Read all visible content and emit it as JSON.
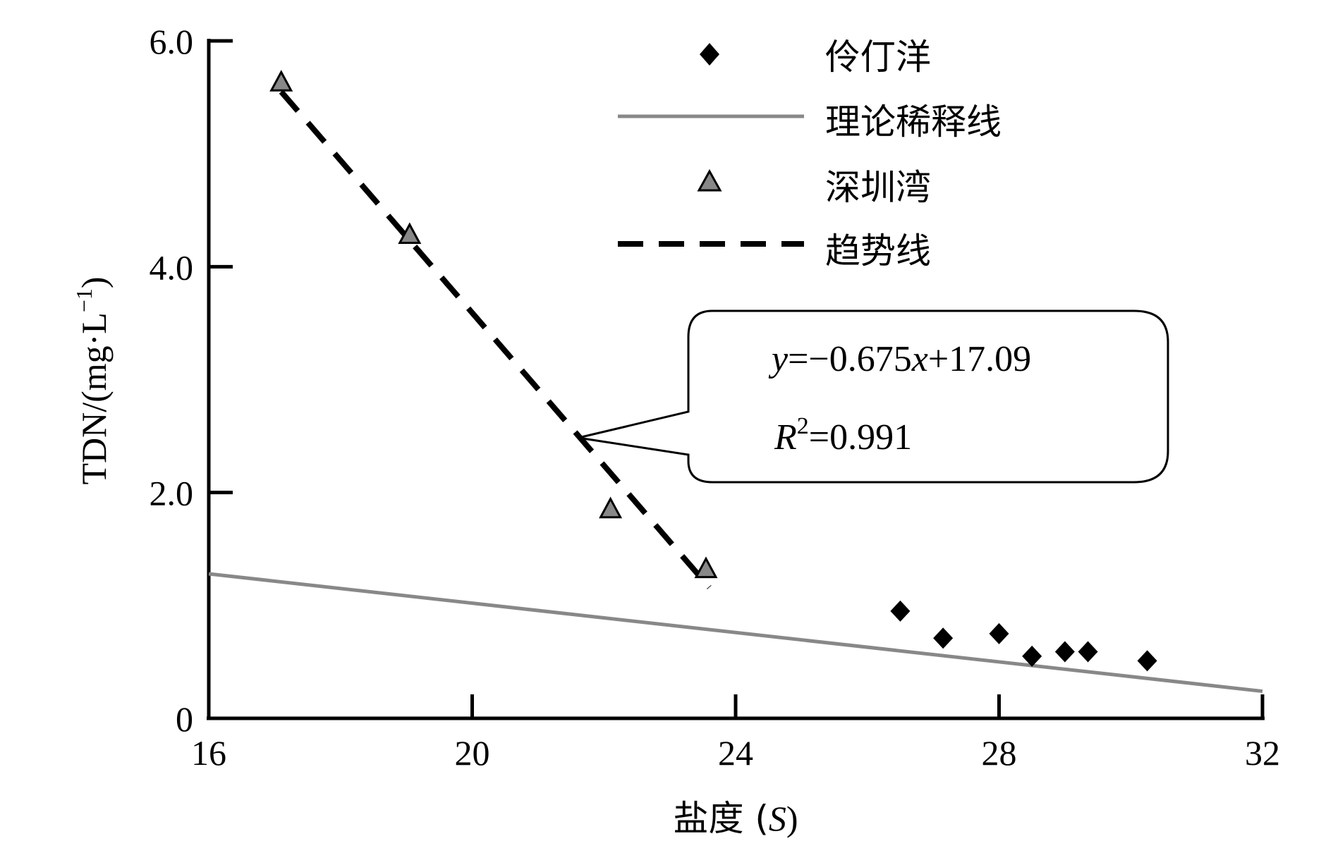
{
  "chart_data": {
    "type": "scatter",
    "xlabel_main": "盐度 (",
    "xlabel_italic": "S",
    "xlabel_end": ")",
    "ylabel_main": "TDN/(mg·L",
    "ylabel_sup": "−1",
    "ylabel_end": ")",
    "xlim": [
      16,
      32
    ],
    "ylim": [
      0,
      6
    ],
    "x_ticks": [
      {
        "value": 16,
        "label": "16"
      },
      {
        "value": 20,
        "label": "20"
      },
      {
        "value": 24,
        "label": "24"
      },
      {
        "value": 28,
        "label": "28"
      },
      {
        "value": 32,
        "label": "32"
      }
    ],
    "y_ticks": [
      {
        "value": 0,
        "label": "0"
      },
      {
        "value": 2,
        "label": "2.0"
      },
      {
        "value": 4,
        "label": "4.0"
      },
      {
        "value": 6,
        "label": "6.0"
      }
    ],
    "grid": false,
    "legend_position": "top-right",
    "series": [
      {
        "name": "伶仃洋",
        "kind": "points",
        "marker": "diamond",
        "color": "#000000",
        "points": [
          [
            26.5,
            0.95
          ],
          [
            27.15,
            0.71
          ],
          [
            28.0,
            0.75
          ],
          [
            28.5,
            0.55
          ],
          [
            29.0,
            0.59
          ],
          [
            29.35,
            0.59
          ],
          [
            30.25,
            0.51
          ]
        ]
      },
      {
        "name": "理论稀释线",
        "kind": "line",
        "style": "solid",
        "color": "#888888",
        "points": [
          [
            16,
            1.28
          ],
          [
            32,
            0.24
          ]
        ]
      },
      {
        "name": "深圳湾",
        "kind": "points",
        "marker": "triangle",
        "color": "#888888",
        "points": [
          [
            17.1,
            5.63
          ],
          [
            19.05,
            4.28
          ],
          [
            22.1,
            1.85
          ],
          [
            23.55,
            1.32
          ]
        ]
      },
      {
        "name": "趋势线",
        "kind": "line",
        "style": "dashed",
        "color": "#000000",
        "points": [
          [
            17.1,
            5.55
          ],
          [
            23.6,
            1.16
          ]
        ]
      }
    ],
    "annotation": {
      "equation_y": "y",
      "equation_rest": "=−0.675",
      "equation_x": "x",
      "equation_end": "+17.09",
      "r2_R": "R",
      "r2_sup": "2",
      "r2_value": "=0.991",
      "pointer_target": [
        21.6,
        2.45
      ]
    }
  }
}
